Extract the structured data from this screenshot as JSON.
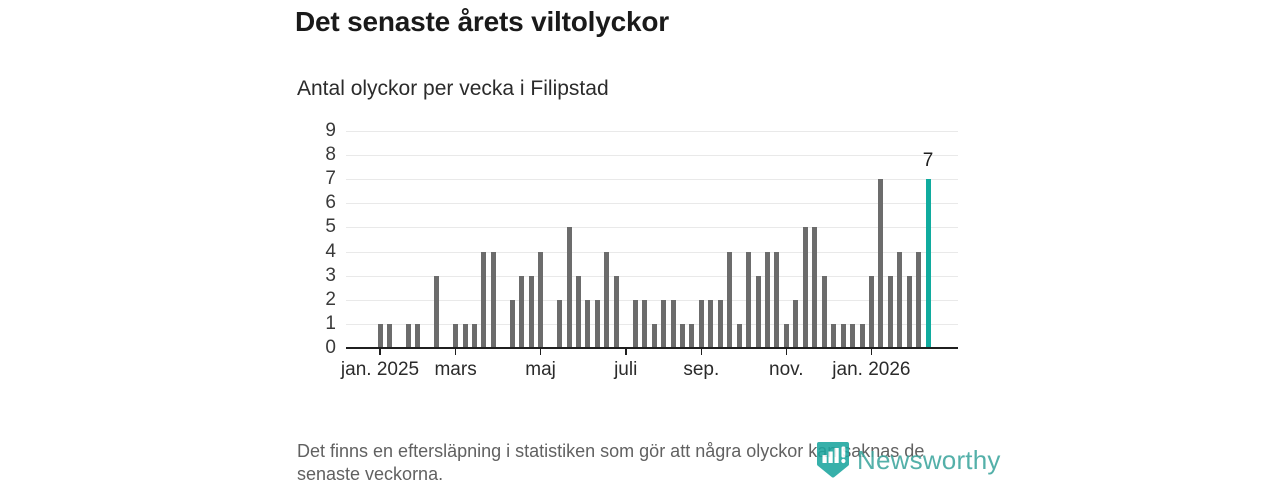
{
  "title": "Det senaste årets viltolyckor",
  "subtitle": "Antal olyckor per vecka i Filipstad",
  "footer": {
    "line1": "Det finns en eftersläpning i statistiken som gör att några olyckor kan saknas de",
    "line2": "senaste veckorna."
  },
  "logo": {
    "text": "Newsworthy",
    "icon": "newsworthy-chart-bubble-icon"
  },
  "colors": {
    "bar": "#6c6c6c",
    "highlight": "#10ab9e",
    "axis": "#1f1f1f",
    "grid": "#e9e9e9",
    "y_label": "#3a3a3a",
    "x_label": "#2b2b2b",
    "footer_text": "#616161",
    "logo_teal": "#3da69e",
    "logo_icon_teal": "#1ca69f"
  },
  "chart_data": {
    "type": "bar",
    "title": "Det senaste årets viltolyckor",
    "subtitle": "Antal olyckor per vecka i Filipstad",
    "xlabel": "",
    "ylabel": "",
    "x_unit": "vecka (week)",
    "ylim": [
      0,
      9
    ],
    "y_ticks": [
      0,
      1,
      2,
      3,
      4,
      5,
      6,
      7,
      8,
      9
    ],
    "grid": true,
    "values": [
      1,
      1,
      0,
      1,
      1,
      0,
      3,
      0,
      1,
      1,
      1,
      4,
      4,
      0,
      2,
      3,
      3,
      4,
      0,
      2,
      5,
      3,
      2,
      2,
      4,
      3,
      0,
      2,
      2,
      1,
      2,
      2,
      1,
      1,
      2,
      2,
      2,
      4,
      1,
      4,
      3,
      4,
      4,
      1,
      2,
      5,
      5,
      3,
      1,
      1,
      1,
      1,
      3,
      7,
      3,
      4,
      3,
      4,
      7
    ],
    "x_ticks": [
      {
        "label": "jan. 2025",
        "slot": 0
      },
      {
        "label": "mars",
        "slot": 8
      },
      {
        "label": "maj",
        "slot": 17
      },
      {
        "label": "juli",
        "slot": 26
      },
      {
        "label": "sep.",
        "slot": 34
      },
      {
        "label": "nov.",
        "slot": 43
      },
      {
        "label": "jan. 2026",
        "slot": 52
      }
    ],
    "highlight_index": 58,
    "highlight_value_label": "7"
  }
}
